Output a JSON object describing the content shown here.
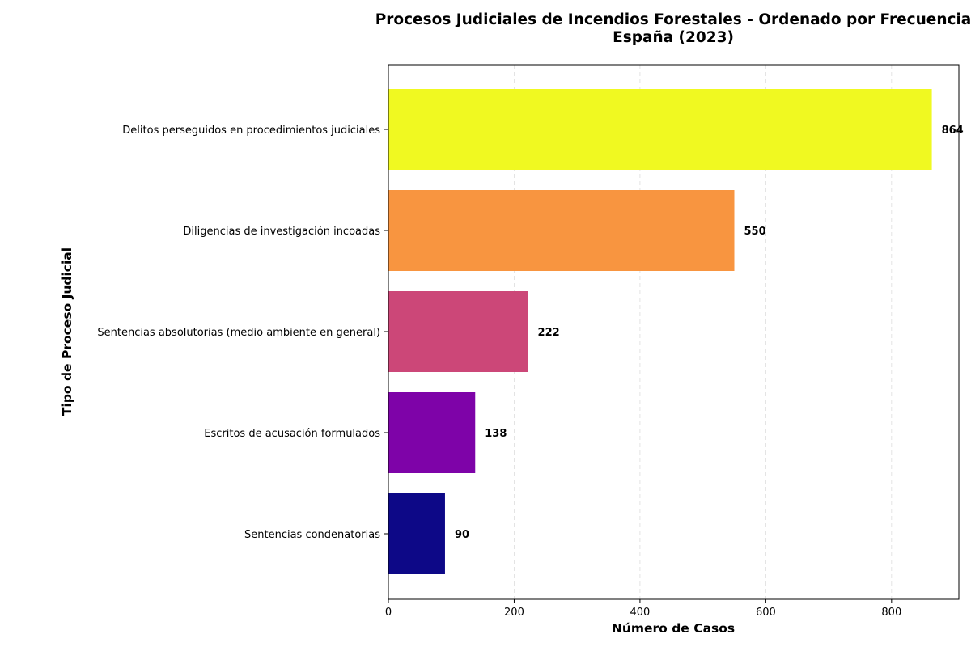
{
  "chart_data": {
    "type": "bar",
    "orientation": "horizontal",
    "title_line1": "Procesos Judiciales de Incendios Forestales - Ordenado por Frecuencia",
    "title_line2": "España (2023)",
    "xlabel": "Número de Casos",
    "ylabel": "Tipo de Proceso Judicial",
    "xlim": [
      0,
      907
    ],
    "xticks": [
      0,
      200,
      400,
      600,
      800
    ],
    "grid": "x-dashed",
    "categories": [
      "Delitos perseguidos en procedimientos judiciales",
      "Diligencias de investigación incoadas",
      "Sentencias absolutorias (medio ambiente en general)",
      "Escritos de acusación formulados",
      "Sentencias condenatorias"
    ],
    "values": [
      864,
      550,
      222,
      138,
      90
    ],
    "colors": [
      "#f0f921",
      "#f89540",
      "#cc4778",
      "#7e03a8",
      "#0d0887"
    ]
  }
}
